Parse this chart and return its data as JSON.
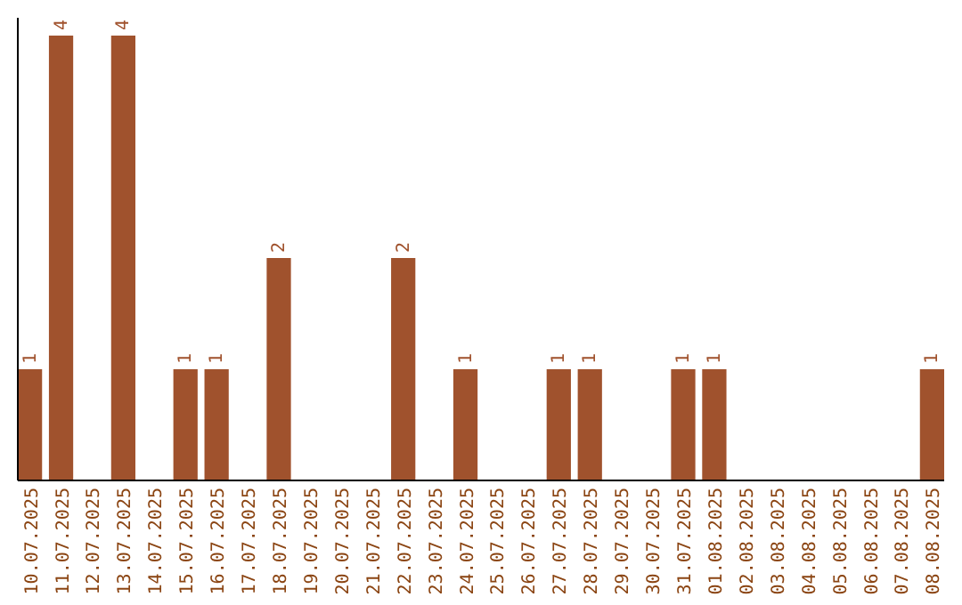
{
  "chart_data": {
    "type": "bar",
    "color": "#a0522d",
    "categories": [
      "10.07.2025",
      "11.07.2025",
      "12.07.2025",
      "13.07.2025",
      "14.07.2025",
      "15.07.2025",
      "16.07.2025",
      "17.07.2025",
      "18.07.2025",
      "19.07.2025",
      "20.07.2025",
      "21.07.2025",
      "22.07.2025",
      "23.07.2025",
      "24.07.2025",
      "25.07.2025",
      "26.07.2025",
      "27.07.2025",
      "28.07.2025",
      "29.07.2025",
      "30.07.2025",
      "31.07.2025",
      "01.08.2025",
      "02.08.2025",
      "03.08.2025",
      "04.08.2025",
      "05.08.2025",
      "06.08.2025",
      "07.08.2025",
      "08.08.2025"
    ],
    "values": [
      1,
      4,
      0,
      4,
      0,
      1,
      1,
      0,
      2,
      0,
      0,
      0,
      2,
      0,
      1,
      0,
      0,
      1,
      1,
      0,
      0,
      1,
      1,
      0,
      0,
      0,
      0,
      0,
      0,
      1
    ],
    "value_labels": [
      "1",
      "4",
      null,
      "4",
      null,
      "1",
      "1",
      null,
      "2",
      null,
      null,
      null,
      "2",
      null,
      "1",
      null,
      null,
      "1",
      "1",
      null,
      null,
      "1",
      "1",
      null,
      null,
      null,
      null,
      null,
      null,
      "1"
    ]
  }
}
